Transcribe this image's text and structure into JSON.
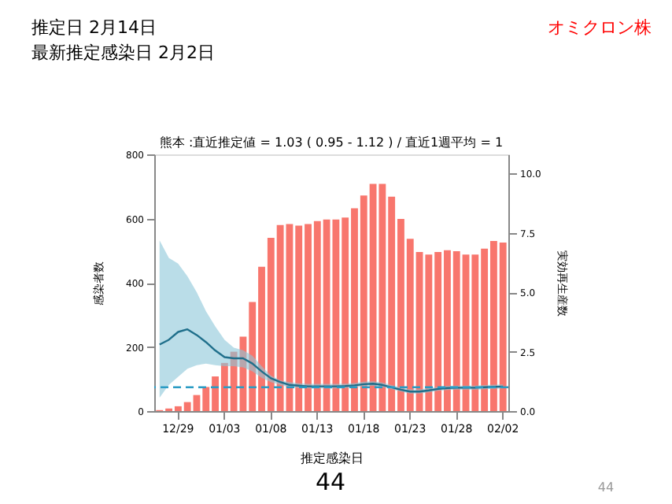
{
  "chart_data": {
    "type": "bar",
    "title": "熊本 :直近推定値 = 1.03 ( 0.95 - 1.12 ) / 直近1週平均 = 1",
    "categories": [
      null,
      null,
      "12/29",
      null,
      null,
      null,
      null,
      "01/03",
      null,
      null,
      null,
      null,
      "01/08",
      null,
      null,
      null,
      null,
      "01/13",
      null,
      null,
      null,
      null,
      "01/18",
      null,
      null,
      null,
      null,
      "01/23",
      null,
      null,
      null,
      null,
      "01/28",
      null,
      null,
      null,
      null,
      "02/02"
    ],
    "series": [
      {
        "color": "#f8766d",
        "values": [
          3,
          8,
          15,
          28,
          50,
          75,
          108,
          150,
          185,
          232,
          340,
          450,
          540,
          580,
          583,
          578,
          583,
          592,
          597,
          597,
          603,
          632,
          672,
          708,
          708,
          668,
          599,
          537,
          496,
          488,
          496,
          501,
          498,
          488,
          488,
          506,
          530,
          525
        ]
      },
      {
        "type": "line",
        "axis": "y2",
        "color": "#1f6f8b",
        "values": [
          2.8,
          3.0,
          3.33,
          3.44,
          3.2,
          2.9,
          2.55,
          2.27,
          2.22,
          2.22,
          2.0,
          1.67,
          1.38,
          1.22,
          1.1,
          1.07,
          1.04,
          1.04,
          1.04,
          1.04,
          1.05,
          1.08,
          1.13,
          1.15,
          1.1,
          1.0,
          0.9,
          0.82,
          0.82,
          0.87,
          0.93,
          0.97,
          0.98,
          0.98,
          0.98,
          1.0,
          1.02,
          1.03
        ],
        "lower": [
          0.56,
          1.1,
          1.44,
          1.78,
          1.93,
          2.0,
          1.93,
          1.89,
          1.89,
          1.84,
          1.67,
          1.4,
          1.22,
          1.1,
          1.0,
          0.97,
          0.95,
          0.95,
          0.95,
          0.95,
          0.96,
          0.99,
          1.04,
          1.06,
          1.01,
          0.92,
          0.82,
          0.74,
          0.74,
          0.79,
          0.85,
          0.89,
          0.9,
          0.9,
          0.9,
          0.92,
          0.94,
          0.95
        ],
        "upper": [
          7.18,
          6.44,
          6.2,
          5.67,
          5.0,
          4.2,
          3.56,
          3.0,
          2.67,
          2.56,
          2.33,
          1.89,
          1.49,
          1.29,
          1.22,
          1.17,
          1.14,
          1.14,
          1.14,
          1.14,
          1.15,
          1.18,
          1.23,
          1.25,
          1.2,
          1.09,
          0.99,
          0.91,
          0.91,
          0.96,
          1.02,
          1.06,
          1.07,
          1.07,
          1.07,
          1.09,
          1.11,
          1.12
        ]
      }
    ],
    "ylim": [
      0,
      800
    ],
    "yticks": [
      0,
      200,
      400,
      600,
      800
    ],
    "y2lim": [
      0,
      10.8
    ],
    "y2ticks": [
      {
        "value": 0,
        "label": "0.0"
      },
      {
        "value": 2.5,
        "label": "2.5"
      },
      {
        "value": 5,
        "label": "5.0"
      },
      {
        "value": 7.5,
        "label": "7.5"
      },
      {
        "value": 10,
        "label": "10.0"
      }
    ],
    "xlabel": "推定感染日",
    "ylabel": "感染者数",
    "y2label": "実効再生産数",
    "ref_lines": [
      {
        "axis": "y2",
        "value": 1,
        "color": "#2a9bc4",
        "line_style": "dashed"
      }
    ],
    "annotations": [
      "推定日  2月14日",
      "最新推定感染日  2月2日",
      "オミクロン株",
      "44",
      "44"
    ],
    "grid": false
  }
}
